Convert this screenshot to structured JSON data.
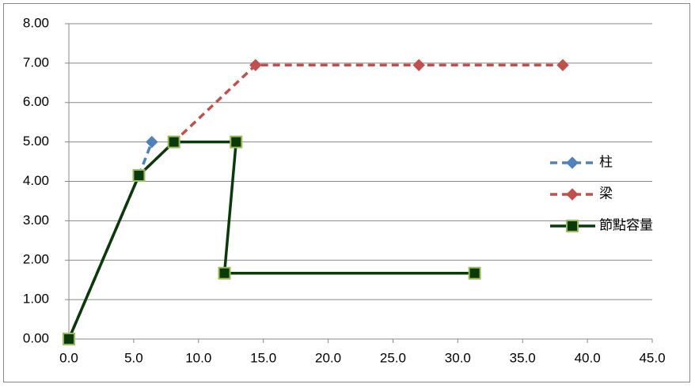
{
  "chart_data": {
    "type": "scatter",
    "xlim": [
      0,
      45
    ],
    "xticks": [
      {
        "value": 0,
        "label": "0.0"
      },
      {
        "value": 5,
        "label": "5.0"
      },
      {
        "value": 10,
        "label": "10.0"
      },
      {
        "value": 15,
        "label": "15.0"
      },
      {
        "value": 20,
        "label": "20.0"
      },
      {
        "value": 25,
        "label": "25.0"
      },
      {
        "value": 30,
        "label": "30.0"
      },
      {
        "value": 35,
        "label": "35.0"
      },
      {
        "value": 40,
        "label": "40.0"
      },
      {
        "value": 45,
        "label": "45.0"
      }
    ],
    "ylim": [
      0,
      8
    ],
    "yticks": [
      {
        "value": 0,
        "label": "0.00"
      },
      {
        "value": 1,
        "label": "1.00"
      },
      {
        "value": 2,
        "label": "2.00"
      },
      {
        "value": 3,
        "label": "3.00"
      },
      {
        "value": 4,
        "label": "4.00"
      },
      {
        "value": 5,
        "label": "5.00"
      },
      {
        "value": 6,
        "label": "6.00"
      },
      {
        "value": 7,
        "label": "7.00"
      },
      {
        "value": 8,
        "label": "8.00"
      }
    ],
    "grid": true,
    "legend": "right",
    "series": [
      {
        "name": "柱",
        "color": "#4f81bd",
        "dash": true,
        "marker": "diamond",
        "x": [
          0,
          5.4,
          6.4
        ],
        "values": [
          0,
          4.15,
          5.0
        ]
      },
      {
        "name": "梁",
        "color": "#c0504d",
        "dash": true,
        "marker": "diamond",
        "x": [
          0,
          5.4,
          8.1,
          14.4,
          27.0,
          38.1
        ],
        "values": [
          0,
          4.15,
          5.0,
          6.95,
          6.95,
          6.95
        ]
      },
      {
        "name": "節點容量",
        "color": "#0a3a0a",
        "dash": false,
        "marker": "square",
        "marker_edge": "#9bbb59",
        "x": [
          0,
          5.4,
          8.1,
          12.9,
          12.0,
          31.3
        ],
        "values": [
          0,
          4.15,
          5.0,
          5.0,
          1.67,
          1.67
        ]
      }
    ]
  }
}
